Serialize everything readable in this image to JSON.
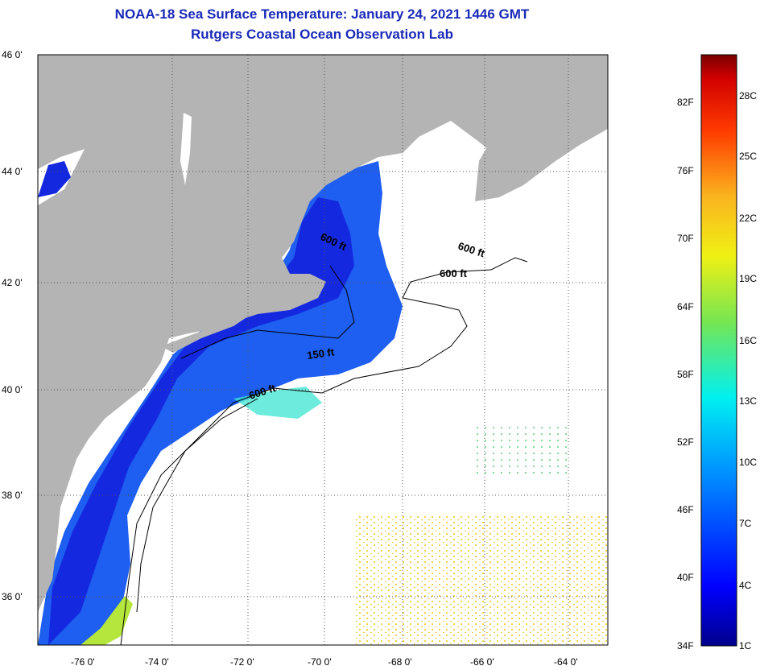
{
  "header": {
    "title": "NOAA-18 Sea Surface Temperature:  January 24, 2021 1446 GMT",
    "subtitle": "Rutgers Coastal Ocean Observation Lab"
  },
  "map": {
    "lat_labels": [
      "46 0'",
      "44 0'",
      "42 0'",
      "40 0'",
      "38 0'",
      "36 0'"
    ],
    "lon_labels": [
      "-76 0'",
      "-74 0'",
      "-72 0'",
      "-70 0'",
      "-68 0'",
      "-66 0'",
      "-64 0'"
    ],
    "isobath_labels": [
      "600 ft",
      "600 ft",
      "600 ft",
      "150 ft",
      "600 ft"
    ],
    "colors": {
      "land": "#b4b4b4",
      "cold": "#1428e0",
      "mid": "#1e6ef0",
      "warm": "#f0c814"
    }
  },
  "colorbar": {
    "fahrenheit": [
      "82F",
      "76F",
      "70F",
      "64F",
      "58F",
      "52F",
      "46F",
      "40F",
      "34F"
    ],
    "celsius": [
      "28C",
      "25C",
      "22C",
      "19C",
      "16C",
      "13C",
      "10C",
      "7C",
      "4C",
      "1C"
    ]
  }
}
